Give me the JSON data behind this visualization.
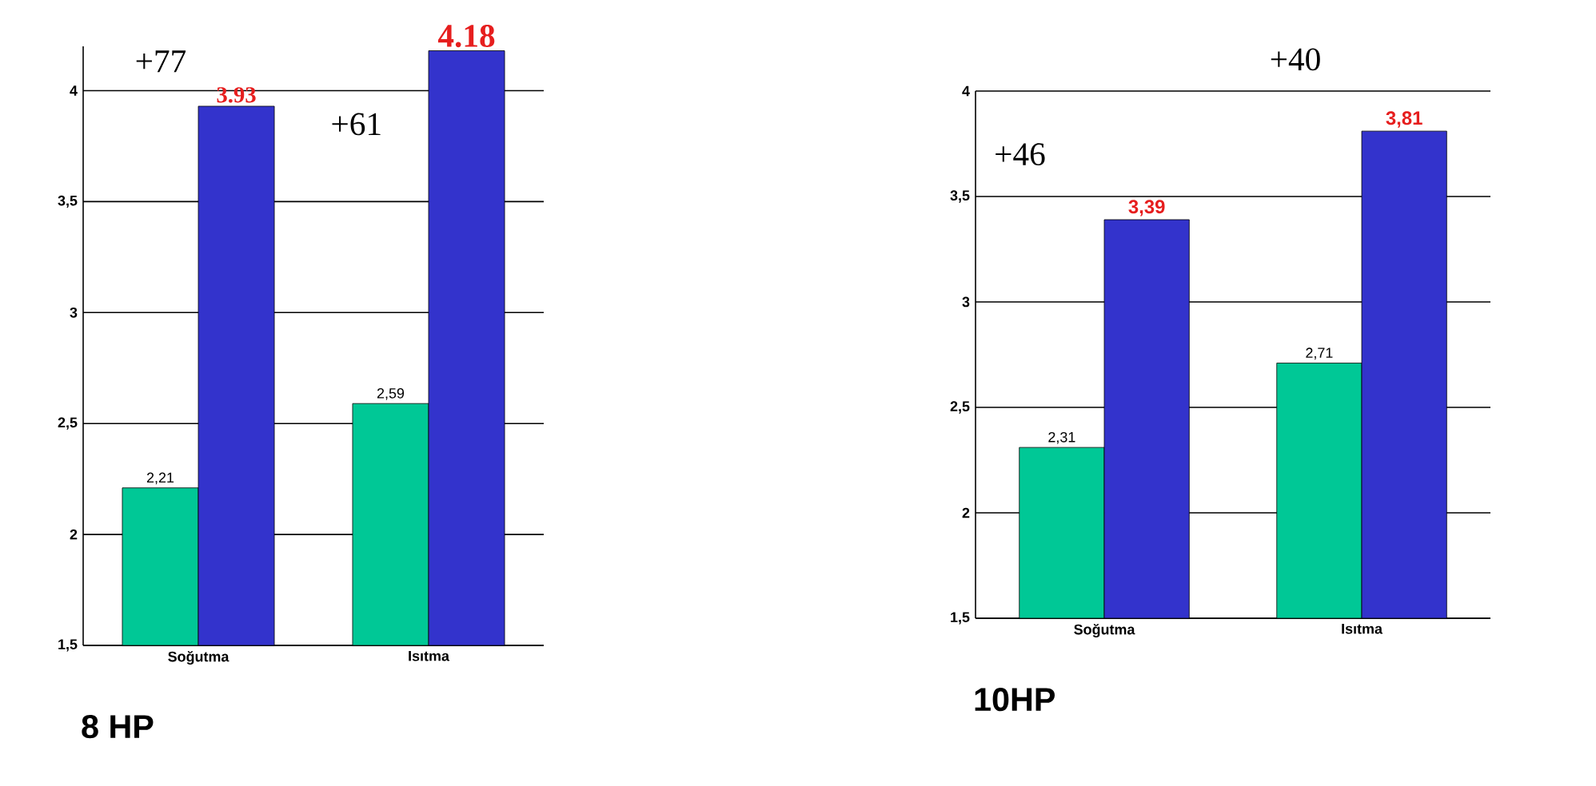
{
  "chart_data": [
    {
      "type": "bar",
      "title": "8 HP",
      "categories": [
        "Soğutma",
        "Isıtma"
      ],
      "ylim": [
        1.5,
        4.2
      ],
      "yticks": [
        {
          "value": 1.5,
          "label": "1,5"
        },
        2,
        {
          "value": 2.5,
          "label": "2,5"
        },
        3,
        {
          "value": 3.5,
          "label": "3,5"
        },
        4
      ],
      "grid": "y",
      "series": [
        {
          "color": "#00c896",
          "values": [
            2.21,
            2.59
          ],
          "value_labels": [
            "2,21",
            "2,59"
          ]
        },
        {
          "color": "#3333cc",
          "values": [
            3.93,
            4.18
          ],
          "value_labels": [
            "3.93",
            "4.18"
          ]
        }
      ],
      "annotations": [
        "+77",
        "+61"
      ]
    },
    {
      "type": "bar",
      "title": "10HP",
      "categories": [
        "Soğutma",
        "Isıtma"
      ],
      "ylim": [
        1.5,
        4
      ],
      "yticks": [
        {
          "value": 1.5,
          "label": "1,5"
        },
        2,
        {
          "value": 2.5,
          "label": "2,5"
        },
        3,
        {
          "value": 3.5,
          "label": "3,5"
        },
        4
      ],
      "grid": "y",
      "series": [
        {
          "color": "#00c896",
          "values": [
            2.31,
            2.71
          ],
          "value_labels": [
            "2,31",
            "2,71"
          ]
        },
        {
          "color": "#3333cc",
          "values": [
            3.39,
            3.81
          ],
          "value_labels": [
            "3,39",
            "3,81"
          ]
        }
      ],
      "annotations": [
        "+46",
        "+40"
      ]
    }
  ]
}
